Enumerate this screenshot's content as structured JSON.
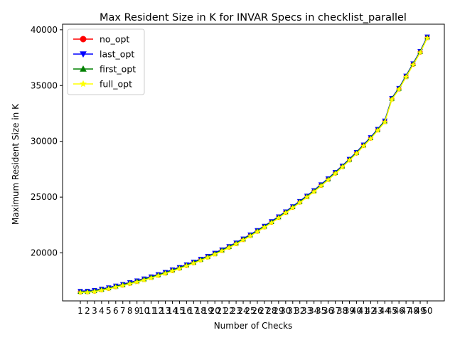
{
  "chart_data": {
    "type": "line",
    "title": "Max Resident Size in K for INVAR Specs in checklist_parallel",
    "xlabel": "Number of Checks",
    "ylabel": "Maximum Resident Size in K",
    "categories": [
      1,
      2,
      3,
      4,
      5,
      6,
      7,
      8,
      9,
      10,
      11,
      12,
      13,
      14,
      15,
      16,
      17,
      18,
      19,
      20,
      21,
      22,
      23,
      24,
      25,
      26,
      27,
      28,
      29,
      30,
      31,
      32,
      33,
      34,
      35,
      36,
      37,
      38,
      39,
      40,
      41,
      42,
      43,
      44,
      45,
      46,
      47,
      48,
      49,
      50
    ],
    "ylim": [
      15700,
      40500
    ],
    "yticks": [
      20000,
      25000,
      30000,
      35000,
      40000
    ],
    "grid": false,
    "legend_position": "top-left",
    "series": [
      {
        "name": "no_opt",
        "color": "#ff0000",
        "marker": "circle",
        "values": [
          16500,
          16520,
          16580,
          16700,
          16820,
          16980,
          17120,
          17280,
          17440,
          17620,
          17800,
          18000,
          18200,
          18420,
          18640,
          18880,
          19120,
          19380,
          19640,
          19920,
          20220,
          20520,
          20840,
          21200,
          21560,
          21950,
          22340,
          22750,
          23180,
          23630,
          24090,
          24560,
          25040,
          25530,
          26060,
          26590,
          27160,
          27730,
          28340,
          28950,
          29620,
          30280,
          31020,
          31770,
          33800,
          34700,
          35800,
          36900,
          38000,
          39300
        ]
      },
      {
        "name": "last_opt",
        "color": "#0000ff",
        "marker": "triangle-down",
        "values": [
          16580,
          16600,
          16660,
          16780,
          16900,
          17060,
          17200,
          17360,
          17520,
          17700,
          17880,
          18080,
          18280,
          18500,
          18720,
          18960,
          19200,
          19460,
          19720,
          20000,
          20300,
          20600,
          20920,
          21280,
          21640,
          22030,
          22420,
          22830,
          23260,
          23710,
          24170,
          24640,
          25120,
          25610,
          26140,
          26670,
          27240,
          27810,
          28420,
          29030,
          29700,
          30360,
          31100,
          31850,
          33880,
          34780,
          35880,
          36980,
          38080,
          39380
        ]
      },
      {
        "name": "first_opt",
        "color": "#008000",
        "marker": "triangle-up",
        "values": [
          16520,
          16540,
          16600,
          16720,
          16840,
          17000,
          17140,
          17300,
          17460,
          17640,
          17820,
          18020,
          18220,
          18440,
          18660,
          18900,
          19140,
          19400,
          19660,
          19940,
          20240,
          20540,
          20860,
          21220,
          21580,
          21970,
          22360,
          22770,
          23200,
          23650,
          24110,
          24580,
          25060,
          25550,
          26080,
          26610,
          27180,
          27750,
          28360,
          28970,
          29640,
          30300,
          31040,
          31790,
          33820,
          34720,
          35820,
          36920,
          38020,
          39320
        ]
      },
      {
        "name": "full_opt",
        "color": "#ffff00",
        "marker": "star",
        "values": [
          16450,
          16470,
          16530,
          16650,
          16770,
          16930,
          17070,
          17230,
          17390,
          17570,
          17750,
          17950,
          18150,
          18370,
          18590,
          18830,
          19070,
          19330,
          19590,
          19870,
          20170,
          20470,
          20790,
          21150,
          21510,
          21900,
          22290,
          22700,
          23130,
          23580,
          24040,
          24510,
          24990,
          25480,
          26010,
          26540,
          27110,
          27680,
          28290,
          28900,
          29570,
          30230,
          30970,
          31720,
          33750,
          34650,
          35750,
          36850,
          37950,
          39250
        ]
      }
    ]
  }
}
